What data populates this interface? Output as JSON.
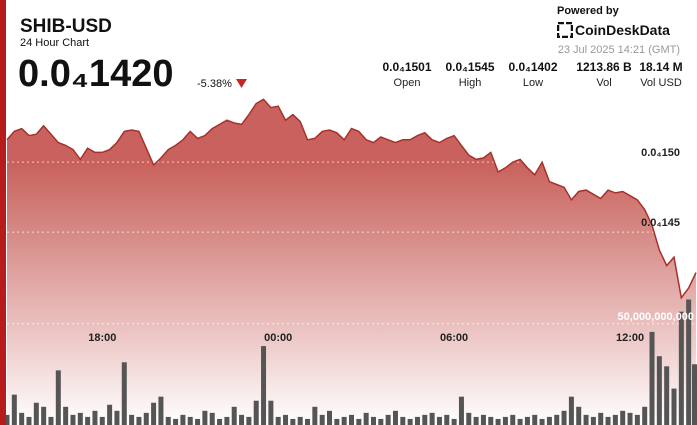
{
  "header": {
    "symbol": "SHIB-USD",
    "subtitle": "24 Hour Chart",
    "price": "0.0₄1420",
    "change": "-5.38%",
    "powered_by": "Powered by",
    "brand": "CoinDeskData",
    "timestamp": "23 Jul 2025 14:21 (GMT)"
  },
  "stats": [
    {
      "value": "0.0₄1501",
      "label": "Open"
    },
    {
      "value": "0.0₄1545",
      "label": "High"
    },
    {
      "value": "0.0₄1402",
      "label": "Low"
    },
    {
      "value": "1213.86 B",
      "label": "Vol"
    },
    {
      "value": "18.14 M",
      "label": "Vol USD"
    }
  ],
  "chart_data": [
    {
      "type": "line",
      "color": "#a8302c",
      "fill_top": "#c65a55",
      "grid": true,
      "categories": [
        null,
        null,
        null,
        null,
        null,
        null,
        null,
        null,
        null,
        null,
        null,
        null,
        null,
        "18:00",
        null,
        null,
        null,
        null,
        null,
        null,
        null,
        null,
        null,
        null,
        null,
        null,
        null,
        null,
        null,
        null,
        null,
        null,
        null,
        null,
        null,
        null,
        null,
        "00:00",
        null,
        null,
        null,
        null,
        null,
        null,
        null,
        null,
        null,
        null,
        null,
        null,
        null,
        null,
        null,
        null,
        null,
        null,
        null,
        null,
        null,
        null,
        null,
        "06:00",
        null,
        null,
        null,
        null,
        null,
        null,
        null,
        null,
        null,
        null,
        null,
        null,
        null,
        null,
        null,
        null,
        null,
        null,
        null,
        null,
        null,
        null,
        null,
        "12:00",
        null,
        null,
        null,
        null,
        null,
        null,
        null,
        null,
        null
      ],
      "values": [
        1.516e-05,
        1.522e-05,
        1.524e-05,
        1.519e-05,
        1.52e-05,
        1.526e-05,
        1.52e-05,
        1.514e-05,
        1.512e-05,
        1.509e-05,
        1.502e-05,
        1.51e-05,
        1.507e-05,
        1.507e-05,
        1.509e-05,
        1.514e-05,
        1.522e-05,
        1.523e-05,
        1.522e-05,
        1.51e-05,
        1.498e-05,
        1.503e-05,
        1.509e-05,
        1.512e-05,
        1.516e-05,
        1.522e-05,
        1.517e-05,
        1.519e-05,
        1.524e-05,
        1.527e-05,
        1.53e-05,
        1.528e-05,
        1.527e-05,
        1.534e-05,
        1.542e-05,
        1.545e-05,
        1.539e-05,
        1.54e-05,
        1.53e-05,
        1.534e-05,
        1.529e-05,
        1.516e-05,
        1.517e-05,
        1.522e-05,
        1.523e-05,
        1.521e-05,
        1.516e-05,
        1.524e-05,
        1.522e-05,
        1.516e-05,
        1.514e-05,
        1.518e-05,
        1.516e-05,
        1.514e-05,
        1.516e-05,
        1.516e-05,
        1.519e-05,
        1.521e-05,
        1.516e-05,
        1.514e-05,
        1.517e-05,
        1.519e-05,
        1.512e-05,
        1.505e-05,
        1.502e-05,
        1.503e-05,
        1.507e-05,
        1.493e-05,
        1.496e-05,
        1.5e-05,
        1.502e-05,
        1.496e-05,
        1.491e-05,
        1.5e-05,
        1.486e-05,
        1.484e-05,
        1.482e-05,
        1.473e-05,
        1.479e-05,
        1.48e-05,
        1.477e-05,
        1.474e-05,
        1.48e-05,
        1.478e-05,
        1.479e-05,
        1.476e-05,
        1.473e-05,
        1.466e-05,
        1.455e-05,
        1.437e-05,
        1.426e-05,
        1.432e-05,
        1.403e-05,
        1.41e-05,
        1.421e-05
      ],
      "ylim": [
        1.312e-05,
        1.616e-05
      ],
      "yticks": [
        {
          "value": 1.5e-05,
          "label": "0.0₄150"
        },
        {
          "value": 1.45e-05,
          "label": "0.0₄145"
        }
      ]
    },
    {
      "type": "bar",
      "color": "#555555",
      "grid": true,
      "values": [
        5000000000,
        15000000000,
        6000000000,
        4000000000,
        11000000000,
        9000000000,
        4000000000,
        27000000000,
        9000000000,
        5000000000,
        6000000000,
        4000000000,
        7000000000,
        4000000000,
        10000000000,
        7000000000,
        31000000000,
        5000000000,
        4000000000,
        6000000000,
        11000000000,
        14000000000,
        4000000000,
        3000000000,
        5000000000,
        4000000000,
        3000000000,
        7000000000,
        6000000000,
        3000000000,
        4000000000,
        9000000000,
        5000000000,
        4000000000,
        12000000000,
        39000000000,
        12000000000,
        4000000000,
        5000000000,
        3000000000,
        4000000000,
        3000000000,
        9000000000,
        5000000000,
        7000000000,
        3000000000,
        4000000000,
        5000000000,
        3000000000,
        6000000000,
        4000000000,
        3000000000,
        5000000000,
        7000000000,
        4000000000,
        3000000000,
        4000000000,
        5000000000,
        6000000000,
        4000000000,
        5000000000,
        3000000000,
        14000000000,
        6000000000,
        4000000000,
        5000000000,
        4000000000,
        3000000000,
        4000000000,
        5000000000,
        3000000000,
        4000000000,
        5000000000,
        3000000000,
        4000000000,
        5000000000,
        7000000000,
        14000000000,
        9000000000,
        5000000000,
        4000000000,
        6000000000,
        4000000000,
        5000000000,
        7000000000,
        6000000000,
        5000000000,
        9000000000,
        46000000000,
        34000000000,
        29000000000,
        18000000000,
        56000000000,
        62000000000,
        30000000000
      ],
      "ylim": [
        0,
        210000000000
      ],
      "yticks": [
        {
          "value": 50000000000,
          "label": "50,000,000,000"
        }
      ]
    }
  ]
}
